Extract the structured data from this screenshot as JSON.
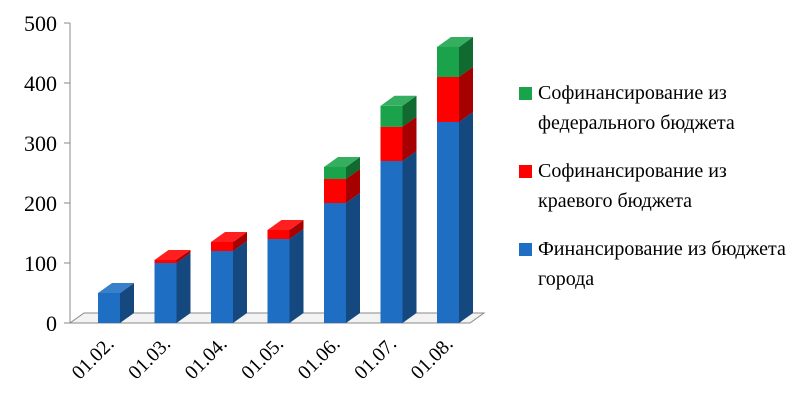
{
  "chart_data": {
    "type": "bar",
    "stacked": true,
    "style": "3d-column",
    "categories": [
      "01.02.",
      "01.03.",
      "01.04.",
      "01.05.",
      "01.06.",
      "01.07.",
      "01.08."
    ],
    "series": [
      {
        "name": " Финансирование из бюджета города",
        "color": "#1e6fc4",
        "values": [
          50,
          100,
          120,
          140,
          200,
          270,
          335
        ]
      },
      {
        "name": "Софинансирование из краевого бюджета",
        "color": "#ff0000",
        "values": [
          0,
          5,
          15,
          15,
          40,
          57,
          75
        ]
      },
      {
        "name": "Софинансирование из федерального бюджета",
        "color": "#1aa34a",
        "values": [
          0,
          0,
          0,
          0,
          20,
          35,
          50
        ]
      }
    ],
    "ylim": [
      0,
      500
    ],
    "yticks": [
      0,
      100,
      200,
      300,
      400,
      500
    ],
    "grid": false,
    "legend": "right",
    "title": "",
    "xlabel": "",
    "ylabel": ""
  }
}
